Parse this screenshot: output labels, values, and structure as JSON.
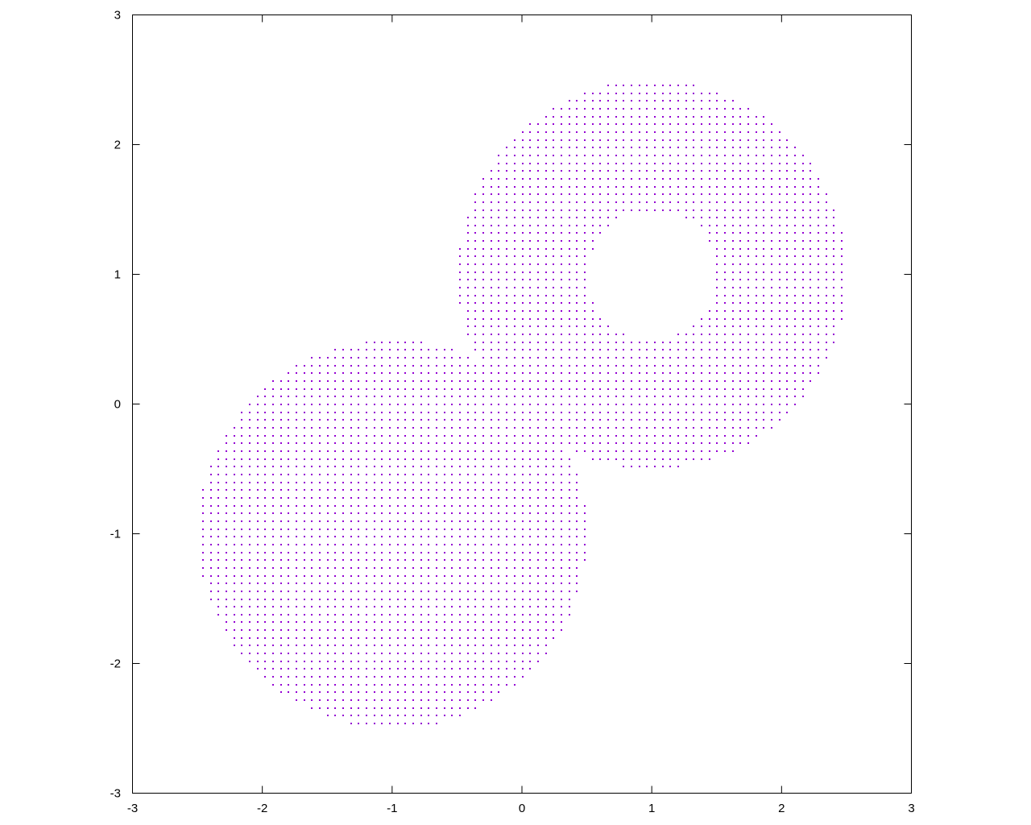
{
  "chart_data": {
    "type": "scatter",
    "title": "",
    "xlabel": "",
    "ylabel": "",
    "xlim": [
      -3,
      3
    ],
    "ylim": [
      -3,
      3
    ],
    "grid": false,
    "legend": "none",
    "x_ticks": [
      "-3",
      "-2",
      "-1",
      "0",
      "1",
      "2",
      "3"
    ],
    "y_ticks": [
      "-3",
      "-2",
      "-1",
      "0",
      "1",
      "2",
      "3"
    ],
    "point_color": "#9400d3",
    "series": [
      {
        "sampling": "regular grid of points inside the union of two disks, minus a hole",
        "grid_step": 0.06,
        "regions": [
          {
            "shape": "disk",
            "center": [
              -1,
              -1
            ],
            "radius": 1.5
          },
          {
            "shape": "disk",
            "center": [
              1,
              1
            ],
            "radius": 1.5
          }
        ],
        "excluded": [
          {
            "shape": "disk",
            "center": [
              1,
              1
            ],
            "radius": 0.5
          }
        ]
      }
    ]
  }
}
